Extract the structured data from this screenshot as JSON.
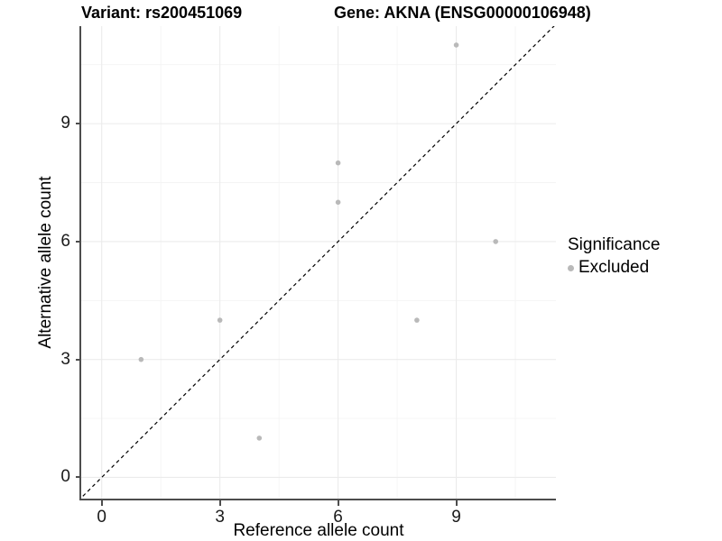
{
  "colors": {
    "point": "#b9b9b9",
    "grid_major": "#ebebeb",
    "grid_minor": "#f4f4f4",
    "axis_line": "#4d4d4d",
    "diagonal": "#000000",
    "tick_text": "#1a1a1a",
    "text": "#000000",
    "background": "#ffffff"
  },
  "chart_data": {
    "type": "scatter",
    "title_left": "Variant: rs200451069",
    "title_right": "Gene: AKNA (ENSG00000106948)",
    "xlabel": "Reference allele count",
    "ylabel": "Alternative allele count",
    "xlim": [
      -0.52,
      11.53
    ],
    "ylim": [
      -0.54,
      11.48
    ],
    "x_ticks": [
      0,
      3,
      6,
      9
    ],
    "y_ticks": [
      0,
      3,
      6,
      9
    ],
    "x_minor_ticks": [
      1.5,
      4.5,
      7.5,
      10.5
    ],
    "y_minor_ticks": [
      1.5,
      4.5,
      7.5,
      10.5
    ],
    "grid": true,
    "series": [
      {
        "name": "Excluded",
        "points": [
          {
            "x": 1,
            "y": 3
          },
          {
            "x": 3,
            "y": 4
          },
          {
            "x": 4,
            "y": 1
          },
          {
            "x": 6,
            "y": 7
          },
          {
            "x": 6,
            "y": 8
          },
          {
            "x": 8,
            "y": 4
          },
          {
            "x": 9,
            "y": 11
          },
          {
            "x": 10,
            "y": 6
          }
        ]
      }
    ],
    "reference_line": {
      "type": "identity",
      "style": "dashed",
      "slope": 1,
      "intercept": 0
    },
    "legend": {
      "title": "Significance",
      "entries": [
        "Excluded"
      ],
      "position": "right"
    }
  }
}
